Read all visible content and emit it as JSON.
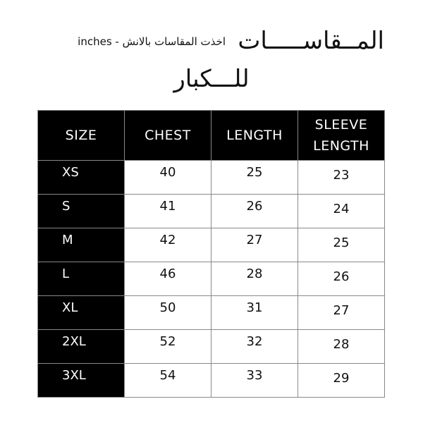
{
  "header": {
    "title_line1": "المــقاســـــات",
    "note": "اخذت المقاسات بالانش - inches",
    "title_line2": "للـــكبار"
  },
  "table": {
    "columns": [
      "SIZE",
      "CHEST",
      "LENGTH",
      "SLEEVE LENGTH"
    ],
    "rows": [
      {
        "size": "XS",
        "chest": "40",
        "length": "25",
        "sleeve": "23"
      },
      {
        "size": "S",
        "chest": "41",
        "length": "26",
        "sleeve": "24"
      },
      {
        "size": "M",
        "chest": "42",
        "length": "27",
        "sleeve": "25"
      },
      {
        "size": "L",
        "chest": "46",
        "length": "28",
        "sleeve": "26"
      },
      {
        "size": "XL",
        "chest": "50",
        "length": "31",
        "sleeve": "27"
      },
      {
        "size": "2XL",
        "chest": "52",
        "length": "32",
        "sleeve": "28"
      },
      {
        "size": "3XL",
        "chest": "54",
        "length": "33",
        "sleeve": "29"
      }
    ]
  },
  "colors": {
    "header_bg": "#000000",
    "header_text": "#ffffff",
    "cell_bg": "#ffffff"
  }
}
